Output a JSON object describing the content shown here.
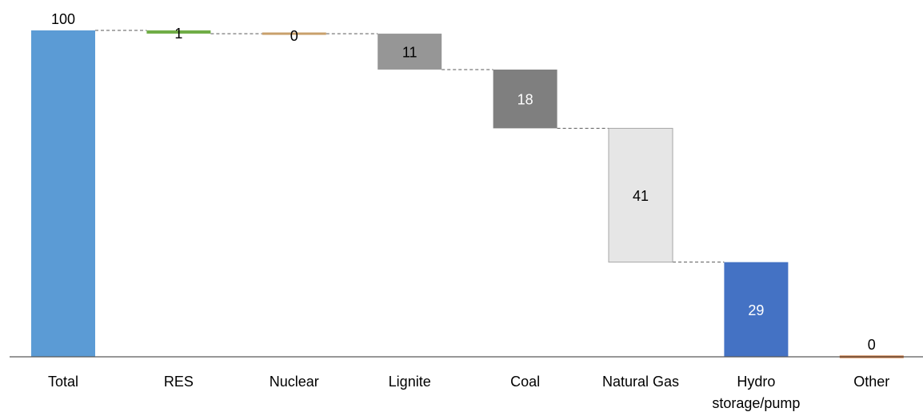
{
  "chart_data": {
    "type": "bar",
    "subtype": "waterfall",
    "categories": [
      "Total",
      "RES",
      "Nuclear",
      "Lignite",
      "Coal",
      "Natural Gas",
      "Hydro storage/pump",
      "Other"
    ],
    "category_label_lines": [
      [
        "Total"
      ],
      [
        "RES"
      ],
      [
        "Nuclear"
      ],
      [
        "Lignite"
      ],
      [
        "Coal"
      ],
      [
        "Natural Gas"
      ],
      [
        "Hydro",
        "storage/pump"
      ],
      [
        "Other"
      ]
    ],
    "values": [
      100,
      1,
      0,
      11,
      18,
      41,
      29,
      0
    ],
    "kinds": [
      "total",
      "decrease",
      "decrease",
      "decrease",
      "decrease",
      "decrease",
      "decrease",
      "decrease"
    ],
    "colors": [
      "#5B9BD5",
      "#70AD47",
      "#C9A06C",
      "#969696",
      "#7F7F7F",
      "#E6E6E6",
      "#4472C4",
      "#C55A11"
    ],
    "value_label_colors": [
      "#000000",
      "#000000",
      "#000000",
      "#000000",
      "#ffffff",
      "#000000",
      "#ffffff",
      "#000000"
    ],
    "ylim": [
      0,
      100
    ],
    "connectors": "dashed",
    "legend": "none",
    "grid": false
  }
}
